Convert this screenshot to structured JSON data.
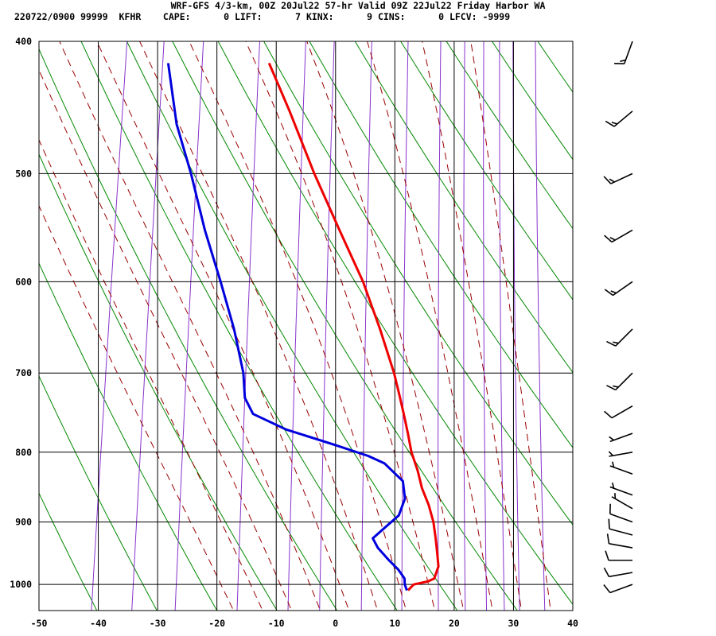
{
  "header": {
    "title": "WRF-GFS 4/3-km, 00Z 20Jul22 57-hr Valid 09Z 22Jul22 Friday Harbor WA",
    "stats_line": "220722/0900 99999  KFHR    CAPE:      0 LIFT:      7 KINX:      9 CINS:      0 LFCV: -9999"
  },
  "chart_data": {
    "type": "skew-t",
    "x_ticks": [
      -50,
      -40,
      -30,
      -20,
      -10,
      0,
      10,
      20,
      30,
      40
    ],
    "y_ticks": [
      400,
      500,
      600,
      700,
      800,
      900,
      1000
    ],
    "xlim": [
      -50,
      40
    ],
    "ylim": [
      1045,
      400
    ],
    "y_log_scale": true,
    "grid": true,
    "colors": {
      "temperature": "#ee0000",
      "dewpoint": "#0000dd",
      "dry_adiabats": "#008800",
      "moist_adiabats": "#990000",
      "mixing_ratio": "#8833cc",
      "wind_barbs": "#000000"
    },
    "series": [
      {
        "key": "temperature",
        "points": [
          [
            1010,
            11.7
          ],
          [
            1000,
            12.5
          ],
          [
            995,
            14.8
          ],
          [
            990,
            15.8
          ],
          [
            970,
            16.2
          ],
          [
            950,
            15.7
          ],
          [
            925,
            15.0
          ],
          [
            900,
            14.2
          ],
          [
            875,
            13.0
          ],
          [
            850,
            11.4
          ],
          [
            825,
            10.2
          ],
          [
            800,
            8.7
          ],
          [
            775,
            7.6
          ],
          [
            750,
            6.4
          ],
          [
            725,
            5.1
          ],
          [
            700,
            3.7
          ],
          [
            650,
            0.2
          ],
          [
            600,
            -3.9
          ],
          [
            550,
            -9.2
          ],
          [
            500,
            -14.9
          ],
          [
            450,
            -20.7
          ],
          [
            415,
            -25.4
          ]
        ]
      },
      {
        "key": "dewpoint",
        "points": [
          [
            1010,
            11.5
          ],
          [
            1000,
            11.0
          ],
          [
            990,
            10.8
          ],
          [
            975,
            9.5
          ],
          [
            960,
            7.7
          ],
          [
            940,
            5.5
          ],
          [
            925,
            4.4
          ],
          [
            910,
            6.0
          ],
          [
            890,
            8.2
          ],
          [
            865,
            8.8
          ],
          [
            840,
            8.0
          ],
          [
            815,
            4.4
          ],
          [
            805,
            1.5
          ],
          [
            790,
            -4.5
          ],
          [
            770,
            -13.0
          ],
          [
            750,
            -19.0
          ],
          [
            730,
            -20.8
          ],
          [
            700,
            -21.7
          ],
          [
            650,
            -24.4
          ],
          [
            600,
            -27.9
          ],
          [
            550,
            -31.9
          ],
          [
            500,
            -35.7
          ],
          [
            460,
            -39.4
          ],
          [
            415,
            -42.4
          ]
        ]
      }
    ],
    "wind_profile": [
      {
        "p": 1000,
        "dir": 250,
        "spd": 10
      },
      {
        "p": 980,
        "dir": 260,
        "spd": 10
      },
      {
        "p": 960,
        "dir": 270,
        "spd": 10
      },
      {
        "p": 940,
        "dir": 280,
        "spd": 10
      },
      {
        "p": 920,
        "dir": 285,
        "spd": 10
      },
      {
        "p": 900,
        "dir": 290,
        "spd": 10
      },
      {
        "p": 880,
        "dir": 300,
        "spd": 5
      },
      {
        "p": 860,
        "dir": 290,
        "spd": 5
      },
      {
        "p": 830,
        "dir": 290,
        "spd": 5
      },
      {
        "p": 800,
        "dir": 260,
        "spd": 5
      },
      {
        "p": 775,
        "dir": 250,
        "spd": 5
      },
      {
        "p": 740,
        "dir": 240,
        "spd": 10
      },
      {
        "p": 700,
        "dir": 225,
        "spd": 15
      },
      {
        "p": 650,
        "dir": 225,
        "spd": 15
      },
      {
        "p": 600,
        "dir": 235,
        "spd": 15
      },
      {
        "p": 550,
        "dir": 240,
        "spd": 15
      },
      {
        "p": 500,
        "dir": 245,
        "spd": 15
      },
      {
        "p": 450,
        "dir": 230,
        "spd": 15
      },
      {
        "p": 400,
        "dir": 200,
        "spd": 15
      }
    ]
  }
}
